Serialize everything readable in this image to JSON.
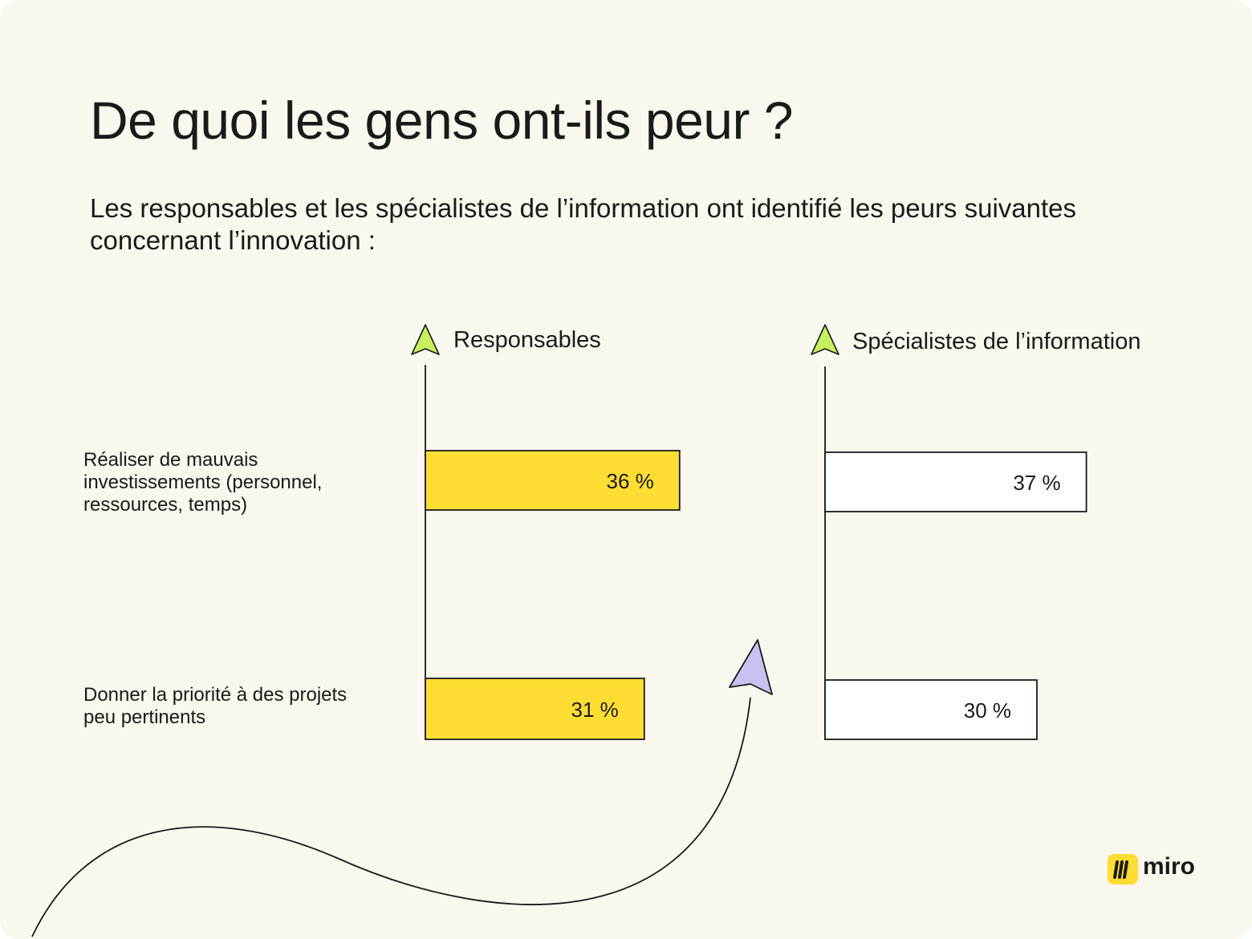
{
  "title": "De quoi les gens ont-ils peur ?",
  "subtitle": "Les responsables et les spécialistes de l’information ont identifié les peurs suivantes concernant l’innovation :",
  "logo": {
    "text": "miro",
    "color": "#ffdd33"
  },
  "chart_data": {
    "type": "bar",
    "orientation": "horizontal",
    "categories": [
      "Réaliser de mauvais investissements (personnel, ressources, temps)",
      "Donner la priorité à des projets peu pertinents"
    ],
    "category_lines": [
      [
        "Réaliser de mauvais",
        "investissements (personnel,",
        "ressources, temps)"
      ],
      [
        "Donner la priorité à des projets",
        "peu pertinents"
      ]
    ],
    "series": [
      {
        "name": "Responsables",
        "values": [
          36,
          31
        ],
        "labels": [
          "36 %",
          "31 %"
        ],
        "fill": "#ffdd33"
      },
      {
        "name": "Spécialistes de l’information",
        "values": [
          37,
          30
        ],
        "labels": [
          "37 %",
          "30 %"
        ],
        "fill": "#ffffff"
      }
    ],
    "unit": "%",
    "colors": {
      "arrow_green": "#c6f05e",
      "arrow_purple": "#c9c0f2",
      "stroke": "#1a1a1a"
    }
  }
}
